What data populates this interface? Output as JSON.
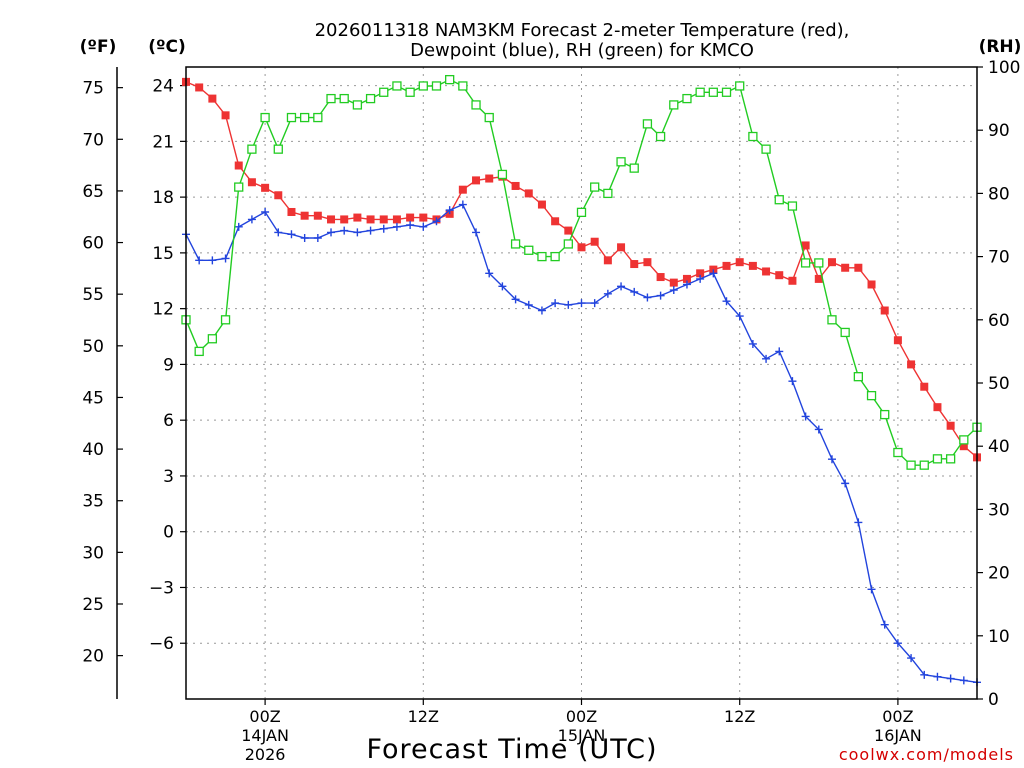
{
  "title_line1": "2026011318 NAM3KM Forecast 2-meter Temperature (red),",
  "title_line2": "Dewpoint (blue), RH (green) for KMCO",
  "units": {
    "fahrenheit": "(ºF)",
    "celsius": "(ºC)",
    "rh": "(RH)"
  },
  "x_axis_title": "Forecast Time (UTC)",
  "credit": "coolwx.com/models",
  "colors": {
    "temperature": "#ee3333",
    "dewpoint": "#2244dd",
    "rh": "#22cc22",
    "grid": "#999999"
  },
  "chart_data": {
    "type": "line",
    "title": "2026011318 NAM3KM Forecast 2-meter Temperature (red), Dewpoint (blue), RH (green) for KMCO",
    "xlabel": "Forecast Time (UTC)",
    "x_unit": "forecast hour from 2026-01-13 18Z",
    "x": [
      0,
      1,
      2,
      3,
      4,
      5,
      6,
      7,
      8,
      9,
      10,
      11,
      12,
      13,
      14,
      15,
      16,
      17,
      18,
      19,
      20,
      21,
      22,
      23,
      24,
      25,
      26,
      27,
      28,
      29,
      30,
      31,
      32,
      33,
      34,
      35,
      36,
      37,
      38,
      39,
      40,
      41,
      42,
      43,
      44,
      45,
      46,
      47,
      48,
      49,
      50,
      51,
      52,
      53,
      54,
      55,
      56,
      57,
      58,
      59,
      60
    ],
    "xlim": [
      0,
      60
    ],
    "x_tick_hours": [
      6,
      18,
      30,
      42,
      54
    ],
    "x_tick_labels": [
      {
        "time": "00Z",
        "date": "14JAN",
        "year": "2026"
      },
      {
        "time": "12Z",
        "date": "",
        "year": ""
      },
      {
        "time": "00Z",
        "date": "15JAN",
        "year": ""
      },
      {
        "time": "12Z",
        "date": "",
        "year": ""
      },
      {
        "time": "00Z",
        "date": "16JAN",
        "year": ""
      }
    ],
    "left_axis_celsius": {
      "label": "(ºC)",
      "ylim": [
        -9,
        25
      ],
      "ticks": [
        24,
        21,
        18,
        15,
        12,
        9,
        6,
        3,
        0,
        -3,
        -6
      ]
    },
    "left_axis_fahrenheit": {
      "label": "(ºF)",
      "ticks": [
        75,
        70,
        65,
        60,
        55,
        50,
        45,
        40,
        35,
        30,
        25,
        20
      ]
    },
    "right_axis_rh": {
      "label": "(RH)",
      "ylim": [
        0,
        100
      ],
      "ticks": [
        100,
        90,
        80,
        70,
        60,
        50,
        40,
        30,
        20,
        10,
        0
      ]
    },
    "series": [
      {
        "name": "Temperature",
        "unit": "°C",
        "axis": "celsius",
        "color": "#ee3333",
        "marker": "filled-square",
        "values": [
          24.2,
          23.9,
          23.3,
          22.4,
          19.7,
          18.8,
          18.5,
          18.1,
          17.2,
          17.0,
          17.0,
          16.8,
          16.8,
          16.9,
          16.8,
          16.8,
          16.8,
          16.9,
          16.9,
          16.8,
          17.1,
          18.4,
          18.9,
          19.0,
          19.1,
          18.6,
          18.2,
          17.6,
          16.7,
          16.2,
          15.3,
          15.6,
          14.6,
          15.3,
          14.4,
          14.5,
          13.7,
          13.4,
          13.6,
          13.9,
          14.1,
          14.3,
          14.5,
          14.3,
          14.0,
          13.8,
          13.5,
          15.4,
          13.6,
          14.5,
          14.2,
          14.2,
          13.3,
          11.9,
          10.3,
          9.0,
          7.8,
          6.7,
          5.7,
          4.6,
          4.0
        ]
      },
      {
        "name": "Dewpoint",
        "unit": "°C",
        "axis": "celsius",
        "color": "#2244dd",
        "marker": "plus",
        "values": [
          16.0,
          14.6,
          14.6,
          14.7,
          16.4,
          16.8,
          17.2,
          16.1,
          16.0,
          15.8,
          15.8,
          16.1,
          16.2,
          16.1,
          16.2,
          16.3,
          16.4,
          16.5,
          16.4,
          16.7,
          17.3,
          17.6,
          16.1,
          13.9,
          13.2,
          12.5,
          12.2,
          11.9,
          12.3,
          12.2,
          12.3,
          12.3,
          12.8,
          13.2,
          12.9,
          12.6,
          12.7,
          13.0,
          13.3,
          13.6,
          13.9,
          12.4,
          11.6,
          10.1,
          9.3,
          9.7,
          8.1,
          6.2,
          5.5,
          3.9,
          2.6,
          0.5,
          -3.1,
          -5.0,
          -6.0,
          -6.8,
          -7.7,
          -7.8,
          -7.9,
          -8.0,
          -8.1
        ]
      },
      {
        "name": "RH",
        "unit": "%",
        "axis": "rh",
        "color": "#22cc22",
        "marker": "open-square",
        "values": [
          60,
          55,
          57,
          60,
          81,
          87,
          92,
          87,
          92,
          92,
          92,
          95,
          95,
          94,
          95,
          96,
          97,
          96,
          97,
          97,
          98,
          97,
          94,
          92,
          83,
          72,
          71,
          70,
          70,
          72,
          77,
          81,
          80,
          85,
          84,
          91,
          89,
          94,
          95,
          96,
          96,
          96,
          97,
          89,
          87,
          79,
          78,
          69,
          69,
          60,
          58,
          51,
          48,
          45,
          39,
          37,
          37,
          38,
          38,
          41,
          43
        ]
      }
    ]
  }
}
